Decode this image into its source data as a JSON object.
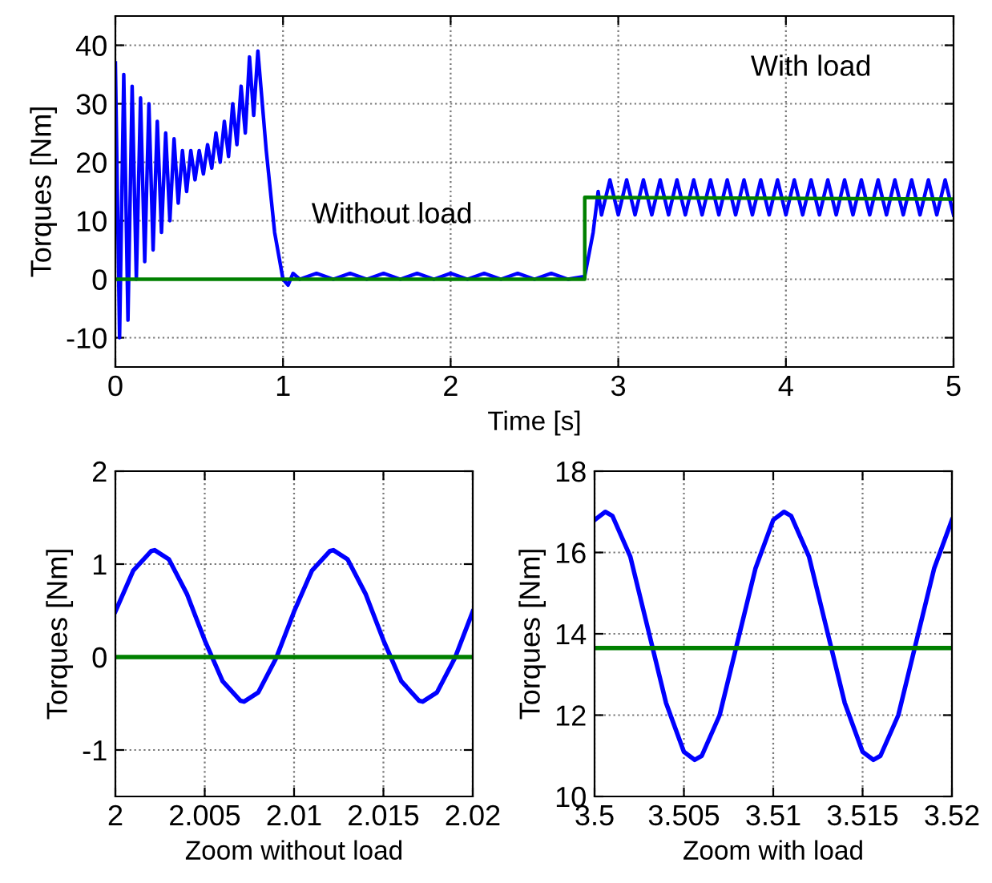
{
  "chart_data": [
    {
      "type": "line",
      "xlabel": "Time [s]",
      "ylabel": "Torques [Nm]",
      "xlim": [
        0,
        5
      ],
      "ylim": [
        -15,
        45
      ],
      "xticks": [
        0,
        1,
        2,
        3,
        4,
        5
      ],
      "yticks": [
        -10,
        0,
        10,
        20,
        30,
        40
      ],
      "grid": true,
      "annotations": [
        "Without load",
        "With load"
      ],
      "series": [
        {
          "color": "#0000ff",
          "x": [
            0,
            0.025,
            0.05,
            0.075,
            0.1,
            0.125,
            0.15,
            0.175,
            0.2,
            0.225,
            0.25,
            0.275,
            0.3,
            0.325,
            0.35,
            0.375,
            0.4,
            0.425,
            0.45,
            0.475,
            0.5,
            0.525,
            0.55,
            0.575,
            0.6,
            0.625,
            0.65,
            0.675,
            0.7,
            0.725,
            0.75,
            0.775,
            0.8,
            0.825,
            0.85,
            0.9,
            0.95,
            1.0,
            1.03,
            1.06,
            1.1,
            1.2,
            1.3,
            1.4,
            1.5,
            1.6,
            1.7,
            1.8,
            1.9,
            2.0,
            2.1,
            2.2,
            2.3,
            2.4,
            2.5,
            2.6,
            2.7,
            2.8,
            2.85,
            2.88,
            2.9,
            2.95,
            3.0,
            3.05,
            3.1,
            3.15,
            3.2,
            3.25,
            3.3,
            3.35,
            3.4,
            3.45,
            3.5,
            3.55,
            3.6,
            3.65,
            3.7,
            3.75,
            3.8,
            3.85,
            3.9,
            3.95,
            4.0,
            4.05,
            4.1,
            4.15,
            4.2,
            4.25,
            4.3,
            4.35,
            4.4,
            4.45,
            4.5,
            4.55,
            4.6,
            4.65,
            4.7,
            4.75,
            4.8,
            4.85,
            4.9,
            4.95,
            5.0
          ],
          "values": [
            37,
            -10,
            35,
            -7,
            33,
            0,
            31,
            3,
            30,
            5,
            27,
            8,
            25,
            10,
            24,
            13,
            22,
            15,
            22,
            17,
            22,
            18,
            23,
            19,
            25,
            20,
            27,
            21,
            30,
            23,
            33,
            25,
            38,
            28,
            39,
            22,
            8,
            0,
            -1,
            1,
            0,
            1,
            0,
            1,
            0,
            1,
            0,
            1,
            0,
            1,
            0,
            1,
            0,
            1,
            0,
            1,
            0,
            0.5,
            8,
            15,
            11,
            17,
            11,
            17,
            11,
            17,
            11,
            17,
            11,
            17,
            11,
            17,
            11,
            17,
            11,
            17,
            11,
            17,
            11,
            17,
            11,
            17,
            11,
            17,
            11,
            17,
            11,
            17,
            11,
            17,
            11,
            17,
            11,
            17,
            11,
            17,
            11,
            17,
            11,
            17,
            11,
            17,
            11
          ]
        },
        {
          "color": "#008000",
          "x": [
            0,
            2.8,
            2.8,
            5
          ],
          "values": [
            0,
            0,
            14,
            13.7
          ]
        }
      ]
    },
    {
      "type": "line",
      "xlabel": "Zoom without load",
      "ylabel": "Torques [Nm]",
      "xlim": [
        2,
        2.02
      ],
      "ylim": [
        -1.5,
        2
      ],
      "xticks": [
        2,
        2.005,
        2.01,
        2.015,
        2.02
      ],
      "yticks": [
        -1,
        0,
        1,
        2
      ],
      "grid": true,
      "series": [
        {
          "color": "#0000ff",
          "x": [
            2.0,
            2.001,
            2.002,
            2.0022,
            2.003,
            2.004,
            2.005,
            2.006,
            2.007,
            2.0072,
            2.008,
            2.009,
            2.01,
            2.011,
            2.012,
            2.0122,
            2.013,
            2.014,
            2.015,
            2.016,
            2.017,
            2.0172,
            2.018,
            2.019,
            2.02
          ],
          "values": [
            0.49,
            0.93,
            1.14,
            1.15,
            1.05,
            0.68,
            0.18,
            -0.26,
            -0.47,
            -0.48,
            -0.38,
            -0.01,
            0.49,
            0.93,
            1.14,
            1.15,
            1.05,
            0.68,
            0.18,
            -0.26,
            -0.47,
            -0.48,
            -0.38,
            -0.01,
            0.49
          ]
        },
        {
          "color": "#008000",
          "x": [
            2,
            2.02
          ],
          "values": [
            0,
            0
          ]
        }
      ]
    },
    {
      "type": "line",
      "xlabel": "Zoom with load",
      "ylabel": "Torques [Nm]",
      "xlim": [
        3.5,
        3.52
      ],
      "ylim": [
        10,
        18
      ],
      "xticks": [
        3.5,
        3.505,
        3.51,
        3.515,
        3.52
      ],
      "yticks": [
        10,
        12,
        14,
        16,
        18
      ],
      "grid": true,
      "series": [
        {
          "color": "#0000ff",
          "x": [
            3.5,
            3.5006,
            3.501,
            3.502,
            3.503,
            3.504,
            3.505,
            3.5056,
            3.506,
            3.507,
            3.508,
            3.509,
            3.51,
            3.5106,
            3.511,
            3.512,
            3.513,
            3.514,
            3.515,
            3.5156,
            3.516,
            3.517,
            3.518,
            3.519,
            3.52
          ],
          "values": [
            16.8,
            17.0,
            16.9,
            15.9,
            14.1,
            12.3,
            11.1,
            10.9,
            11.0,
            12.0,
            13.8,
            15.6,
            16.8,
            17.0,
            16.9,
            15.9,
            14.1,
            12.3,
            11.1,
            10.9,
            11.0,
            12.0,
            13.8,
            15.6,
            16.8
          ]
        },
        {
          "color": "#008000",
          "x": [
            3.5,
            3.52
          ],
          "values": [
            13.65,
            13.65
          ]
        }
      ]
    }
  ]
}
